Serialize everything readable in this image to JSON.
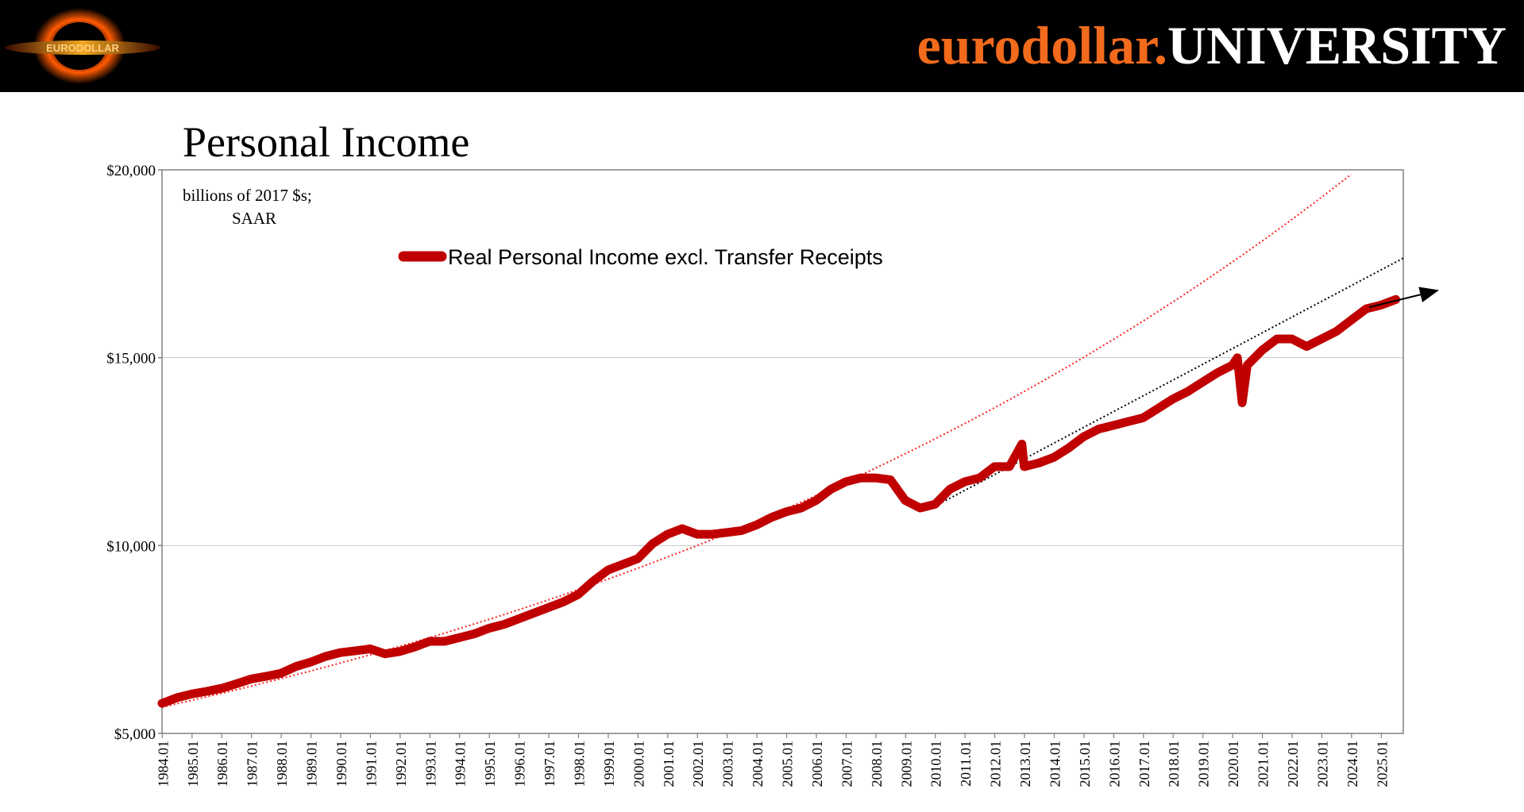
{
  "header": {
    "brand_part1": "eurodollar.",
    "brand_part2": "UNIVERSITY",
    "logo_text": "EURODOLLAR"
  },
  "slide": {
    "title": "Personal Income",
    "units_line1": "billions of 2017 $s;",
    "units_line2": "SAAR"
  },
  "colors": {
    "series": "#c00000",
    "trend": "#ff2020",
    "trend2": "#000000",
    "brand_orange": "#f26a1b"
  },
  "chart_data": {
    "type": "line",
    "title": "",
    "xlabel": "",
    "ylabel": "",
    "ylim": [
      5000,
      20000
    ],
    "y_ticks": [
      "$5,000",
      "$10,000",
      "$15,000",
      "$20,000"
    ],
    "y_tick_values": [
      5000,
      10000,
      15000,
      20000
    ],
    "x_ticks": [
      "1984.01",
      "1985.01",
      "1986.01",
      "1987.01",
      "1988.01",
      "1989.01",
      "1990.01",
      "1991.01",
      "1992.01",
      "1993.01",
      "1994.01",
      "1995.01",
      "1996.01",
      "1997.01",
      "1998.01",
      "1999.01",
      "2000.01",
      "2001.01",
      "2002.01",
      "2003.01",
      "2004.01",
      "2005.01",
      "2006.01",
      "2007.01",
      "2008.01",
      "2009.01",
      "2010.01",
      "2011.01",
      "2012.01",
      "2013.01",
      "2014.01",
      "2015.01",
      "2016.01",
      "2017.01",
      "2018.01",
      "2019.01",
      "2020.01",
      "2021.01",
      "2022.01",
      "2023.01",
      "2024.01",
      "2025.01"
    ],
    "x_range": [
      1984.0,
      2025.75
    ],
    "grid": "horizontal",
    "legend_position": "top-center",
    "series": [
      {
        "name": "Real Personal Income excl. Transfer Receipts",
        "x": [
          1984.0,
          1984.5,
          1985.0,
          1985.5,
          1986.0,
          1986.5,
          1987.0,
          1987.5,
          1988.0,
          1988.5,
          1989.0,
          1989.5,
          1990.0,
          1990.5,
          1991.0,
          1991.5,
          1992.0,
          1992.5,
          1993.0,
          1993.5,
          1994.0,
          1994.5,
          1995.0,
          1995.5,
          1996.0,
          1996.5,
          1997.0,
          1997.5,
          1998.0,
          1998.5,
          1999.0,
          1999.5,
          2000.0,
          2000.5,
          2001.0,
          2001.5,
          2002.0,
          2002.5,
          2003.0,
          2003.5,
          2004.0,
          2004.5,
          2005.0,
          2005.5,
          2006.0,
          2006.5,
          2007.0,
          2007.5,
          2008.0,
          2008.5,
          2009.0,
          2009.5,
          2010.0,
          2010.5,
          2011.0,
          2011.5,
          2012.0,
          2012.5,
          2012.92,
          2013.0,
          2013.5,
          2014.0,
          2014.5,
          2015.0,
          2015.5,
          2016.0,
          2016.5,
          2017.0,
          2017.5,
          2018.0,
          2018.5,
          2019.0,
          2019.5,
          2020.0,
          2020.17,
          2020.33,
          2020.5,
          2021.0,
          2021.5,
          2022.0,
          2022.5,
          2023.0,
          2023.5,
          2024.0,
          2024.5,
          2025.0,
          2025.5
        ],
        "values": [
          5800,
          5950,
          6050,
          6120,
          6200,
          6320,
          6450,
          6520,
          6600,
          6780,
          6900,
          7050,
          7150,
          7200,
          7250,
          7120,
          7180,
          7300,
          7450,
          7450,
          7550,
          7650,
          7800,
          7900,
          8050,
          8200,
          8350,
          8500,
          8700,
          9050,
          9350,
          9500,
          9650,
          10050,
          10300,
          10450,
          10300,
          10300,
          10350,
          10400,
          10550,
          10750,
          10900,
          11000,
          11200,
          11500,
          11700,
          11800,
          11800,
          11750,
          11200,
          11000,
          11100,
          11500,
          11700,
          11800,
          12100,
          12100,
          12700,
          12100,
          12200,
          12350,
          12600,
          12900,
          13100,
          13200,
          13300,
          13400,
          13650,
          13900,
          14100,
          14350,
          14600,
          14800,
          15000,
          13800,
          14800,
          15200,
          15500,
          15500,
          15300,
          15500,
          15700,
          16000,
          16300,
          16400,
          16550
        ]
      }
    ],
    "trendlines": [
      {
        "x": [
          1984.0,
          2025.75
        ],
        "values": [
          5700,
          21000
        ]
      },
      {
        "x": [
          2010.0,
          2025.75
        ],
        "values": [
          11050,
          17650
        ]
      }
    ]
  }
}
